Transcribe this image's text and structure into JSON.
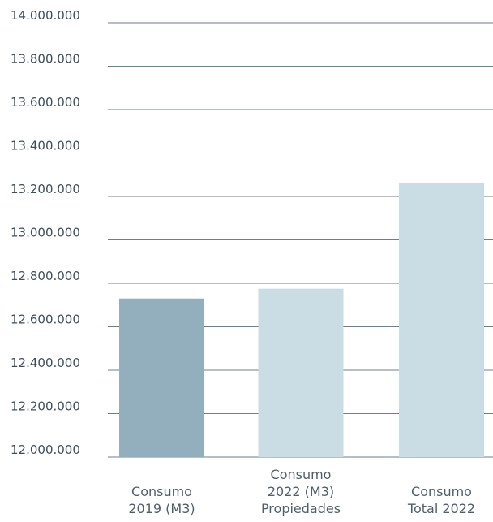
{
  "chart_data": {
    "type": "bar",
    "title": "",
    "xlabel": "",
    "ylabel": "",
    "ylim": [
      12000000,
      14000000
    ],
    "yticks": [
      {
        "value": 14000000,
        "label": "14.000.000"
      },
      {
        "value": 13800000,
        "label": "13.800.000"
      },
      {
        "value": 13600000,
        "label": "13.600.000"
      },
      {
        "value": 13400000,
        "label": "13.400.000"
      },
      {
        "value": 13200000,
        "label": "13.200.000"
      },
      {
        "value": 13000000,
        "label": "13.000.000"
      },
      {
        "value": 12800000,
        "label": "12.800.000"
      },
      {
        "value": 12600000,
        "label": "12.600.000"
      },
      {
        "value": 12400000,
        "label": "12.400.000"
      },
      {
        "value": 12200000,
        "label": "12.200.000"
      },
      {
        "value": 12000000,
        "label": "12.000.000"
      }
    ],
    "categories": [
      [
        "Consumo",
        "2019 (M3)"
      ],
      [
        "Consumo",
        "2022 (M3)",
        "Propiedades"
      ],
      [
        "Consumo",
        "Total 2022"
      ]
    ],
    "values": [
      12730000,
      12775000,
      13260000
    ],
    "colors": [
      "#93afbe",
      "#cadce4",
      "#cadce4"
    ],
    "grid": true,
    "grid_color": "#6f7f88"
  }
}
